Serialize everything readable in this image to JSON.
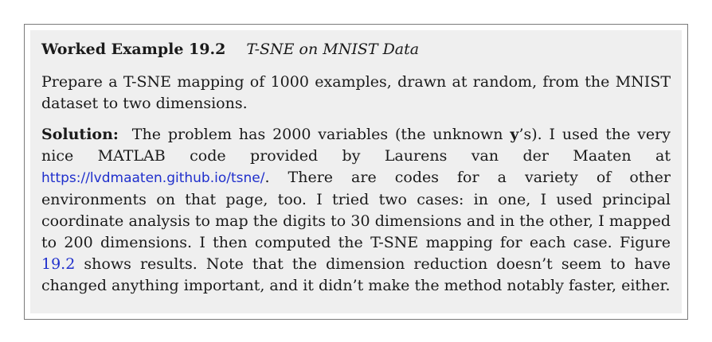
{
  "example": {
    "label": "Worked Example 19.2",
    "title": "T-SNE on MNIST Data"
  },
  "problem": {
    "text": "Prepare a T-SNE mapping of 1000 examples, drawn at random, from the MNIST dataset to two dimensions."
  },
  "solution": {
    "label": "Solution:",
    "text_1": "The problem has 2000 variables (the unknown ",
    "bold_var": "y",
    "text_2": "’s). I used the very nice MATLAB code provided by Laurens van der Maaten at ",
    "link": "https://lvdmaaten.github.io/tsne/",
    "text_3": ". There are codes for a variety of other environments on that page, too. I tried two cases: in one, I used principal coordinate analysis to map the digits to 30 dimensions and in the other, I mapped to 200 dimensions. I then computed the T-SNE mapping for each case. Figure ",
    "figure_ref": "19.2",
    "text_4": " shows results. Note that the dimension reduction doesn’t seem to have changed anything important, and it didn’t make the method notably faster, either."
  }
}
